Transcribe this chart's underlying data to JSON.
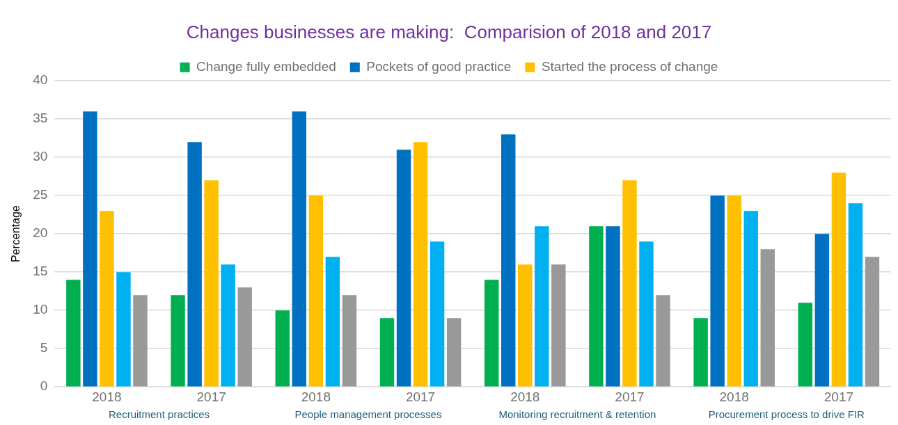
{
  "chart_data": {
    "type": "bar",
    "title": "Changes businesses are making:  Comparision of 2018 and 2017",
    "ylabel": "Percentage",
    "categories": [
      "2018",
      "2017",
      "2018",
      "2017",
      "2018",
      "2017",
      "2018",
      "2017"
    ],
    "series": [
      {
        "name": "Change fully embedded",
        "color": "#00b050",
        "values": [
          14,
          12,
          10,
          9,
          14,
          21,
          9,
          11
        ]
      },
      {
        "name": "Pockets of good practice",
        "color": "#0070c0",
        "values": [
          36,
          32,
          36,
          31,
          33,
          21,
          25,
          20
        ]
      },
      {
        "name": "Started the process of change",
        "color": "#ffc000",
        "values": [
          23,
          27,
          25,
          32,
          16,
          27,
          25,
          28
        ]
      },
      {
        "color": "#00b0f0",
        "values": [
          15,
          16,
          17,
          19,
          21,
          19,
          23,
          24
        ]
      },
      {
        "color": "#999999",
        "values": [
          12,
          13,
          12,
          9,
          16,
          12,
          18,
          17
        ]
      }
    ],
    "ylim": [
      0,
      40
    ],
    "yticks": [
      0,
      5,
      10,
      15,
      20,
      25,
      30,
      35,
      40
    ],
    "grid": "y",
    "legend": "top",
    "annotations": [
      "Recruitment practices",
      "People management processes",
      "Monitoring recruitment & retention",
      "Procurement process to drive FIR"
    ]
  }
}
